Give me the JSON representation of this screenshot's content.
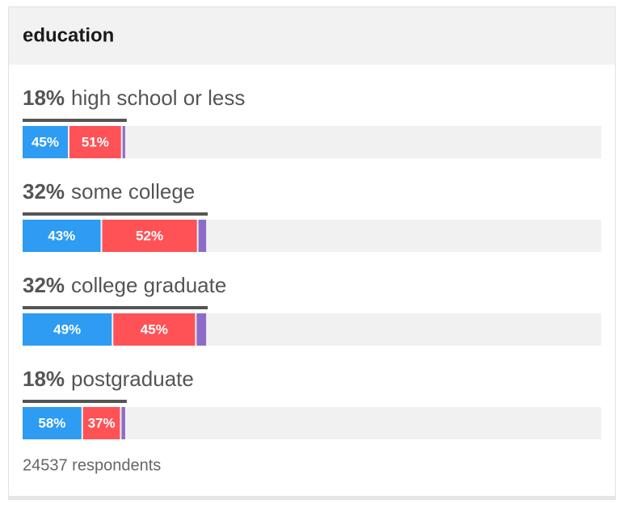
{
  "chart_data": {
    "type": "bar",
    "title": "education",
    "categories": [
      "high school or less",
      "some college",
      "college graduate",
      "postgraduate"
    ],
    "values": [
      18,
      32,
      32,
      18
    ],
    "value_labels": [
      "18%",
      "32%",
      "32%",
      "18%"
    ],
    "color": "#555555",
    "xlim": [
      0,
      100
    ],
    "series": [
      {
        "color": "#2d9cf2",
        "values": [
          45,
          43,
          49,
          58
        ],
        "value_labels": [
          "45%",
          "43%",
          "49%",
          "58%"
        ]
      },
      {
        "color": "#ff5256",
        "values": [
          51,
          52,
          45,
          37
        ],
        "value_labels": [
          "51%",
          "52%",
          "45%",
          "37%"
        ]
      },
      {
        "color": "#8c6cc8",
        "values": [
          4,
          5,
          6,
          5
        ]
      }
    ],
    "footnote": "24537 respondents"
  }
}
